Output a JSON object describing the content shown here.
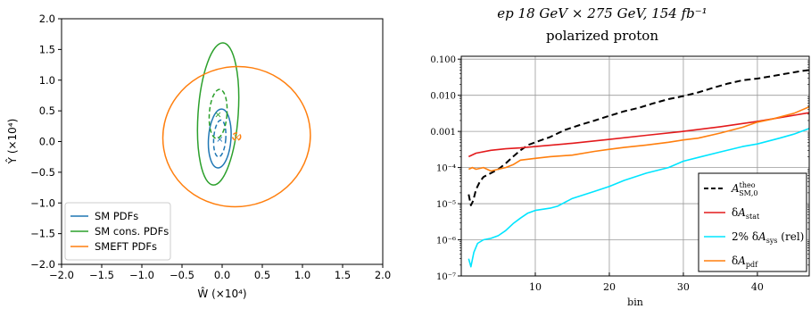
{
  "chart_data": [
    {
      "type": "scatter",
      "subtype": "ellipse-contours",
      "title": "",
      "xlabel": "Ŵ (×10⁴)",
      "ylabel": "Ŷ (×10⁴)",
      "xlim": [
        -2.0,
        2.0
      ],
      "ylim": [
        -2.0,
        2.0
      ],
      "xticks": [
        "−2.0",
        "−1.5",
        "−1.0",
        "−0.5",
        "0.0",
        "0.5",
        "1.0",
        "1.5",
        "2.0"
      ],
      "yticks": [
        "2.0",
        "1.5",
        "1.0",
        "0.5",
        "0.0",
        "−0.5",
        "−1.0",
        "−1.5",
        "−2.0"
      ],
      "grid": false,
      "legend_position": "lower-left",
      "series": [
        {
          "name": "SM PDFs",
          "color": "#1f77b4",
          "center": [
            -0.03,
            0.05
          ],
          "ellipses": [
            {
              "style": "solid",
              "rx": 0.14,
              "ry": 0.48,
              "tilt_deg": 4
            },
            {
              "style": "dashed",
              "rx": 0.075,
              "ry": 0.3,
              "tilt_deg": 4
            }
          ]
        },
        {
          "name": "SM cons. PDFs",
          "color": "#2ca02c",
          "center": [
            -0.05,
            0.45
          ],
          "ellipses": [
            {
              "style": "solid",
              "rx": 0.25,
              "ry": 1.16,
              "tilt_deg": 4
            },
            {
              "style": "dashed",
              "rx": 0.11,
              "ry": 0.4,
              "tilt_deg": 4
            }
          ]
        },
        {
          "name": "SMEFT PDFs",
          "color": "#ff7f0e",
          "center": [
            0.18,
            0.08
          ],
          "ellipses": [
            {
              "style": "solid",
              "rx": 0.92,
              "ry": 1.14,
              "tilt_deg": -10
            },
            {
              "style": "dashed",
              "rx": 0.05,
              "ry": 0.06,
              "tilt_deg": 0
            }
          ]
        }
      ]
    },
    {
      "type": "line",
      "title_line1": "ep 18 GeV × 275 GeV,  154 fb⁻¹",
      "title_line2": "polarized proton",
      "xlabel": "bin",
      "ylabel": "",
      "xlim": [
        0,
        47
      ],
      "ylim": [
        1e-07,
        0.12
      ],
      "yscale": "log",
      "xticks": [
        "10",
        "20",
        "30",
        "40"
      ],
      "yticks": [
        "0.100",
        "0.010",
        "0.001",
        "10⁻⁴",
        "10⁻⁵",
        "10⁻⁶",
        "10⁻⁷"
      ],
      "grid": true,
      "legend_position": "lower-right",
      "series": [
        {
          "name": "A_SM,0^theo",
          "legend_main": "A",
          "legend_sub": "SM,0",
          "legend_sup": "theo",
          "legend_suffix": "",
          "color": "#000000",
          "style": "dashed",
          "x": [
            1,
            1.3,
            1.6,
            2,
            2.5,
            3,
            4,
            5,
            6,
            7,
            8,
            9,
            10,
            12,
            14,
            16,
            18,
            20,
            22,
            24,
            26,
            28,
            30,
            32,
            34,
            36,
            38,
            40,
            42,
            44,
            46,
            47
          ],
          "y": [
            1.8e-05,
            9e-06,
            1.2e-05,
            2.5e-05,
            4e-05,
            5.5e-05,
            7e-05,
            9e-05,
            0.00013,
            0.0002,
            0.0003,
            0.00042,
            0.0005,
            0.0007,
            0.0011,
            0.0015,
            0.002,
            0.0027,
            0.0036,
            0.0045,
            0.006,
            0.0078,
            0.0095,
            0.012,
            0.016,
            0.021,
            0.026,
            0.029,
            0.034,
            0.04,
            0.047,
            0.05
          ]
        },
        {
          "name": "δA_stat",
          "legend_main": "δA",
          "legend_sub": "stat",
          "legend_sup": "",
          "legend_suffix": "",
          "color": "#e31a1c",
          "style": "solid",
          "x": [
            1,
            2,
            4,
            6,
            8,
            10,
            15,
            20,
            25,
            30,
            35,
            40,
            45,
            47
          ],
          "y": [
            0.0002,
            0.00025,
            0.0003,
            0.00033,
            0.00035,
            0.00038,
            0.00047,
            0.0006,
            0.00078,
            0.001,
            0.00135,
            0.0019,
            0.0028,
            0.0033
          ]
        },
        {
          "name": "2% δA_sys (rel)",
          "legend_main": "2% δA",
          "legend_sub": "sys",
          "legend_sup": "",
          "legend_suffix": " (rel)",
          "color": "#00e5ff",
          "style": "solid",
          "x": [
            1,
            1.3,
            1.7,
            2.2,
            3,
            4,
            5,
            6,
            7,
            8,
            9,
            10,
            12,
            13,
            15,
            18,
            20,
            22,
            25,
            28,
            30,
            32,
            35,
            38,
            40,
            43,
            45,
            47
          ],
          "y": [
            3e-07,
            1.8e-07,
            4.5e-07,
            8e-07,
            1e-06,
            1.1e-06,
            1.3e-06,
            1.8e-06,
            2.8e-06,
            4e-06,
            5.5e-06,
            6.5e-06,
            7.5e-06,
            8.5e-06,
            1.4e-05,
            2.2e-05,
            3e-05,
            4.4e-05,
            7e-05,
            0.0001,
            0.00015,
            0.00019,
            0.00027,
            0.00038,
            0.00045,
            0.00065,
            0.00085,
            0.0012
          ]
        },
        {
          "name": "δA_pdf",
          "legend_main": "δA",
          "legend_sub": "pdf",
          "legend_sup": "",
          "legend_suffix": "",
          "color": "#ff7f0e",
          "style": "solid",
          "x": [
            1,
            1.5,
            2,
            3,
            4,
            5,
            6,
            7,
            8,
            9,
            10,
            12,
            15,
            18,
            20,
            22,
            25,
            28,
            30,
            32,
            35,
            38,
            40,
            42,
            45,
            47
          ],
          "y": [
            9e-05,
            0.0001,
            9e-05,
            0.0001,
            8e-05,
            9e-05,
            0.0001,
            0.00012,
            0.00016,
            0.00017,
            0.00018,
            0.0002,
            0.00022,
            0.00028,
            0.00032,
            0.00036,
            0.00042,
            0.0005,
            0.00058,
            0.00065,
            0.0009,
            0.0013,
            0.0018,
            0.0022,
            0.0032,
            0.0048
          ]
        }
      ]
    }
  ]
}
